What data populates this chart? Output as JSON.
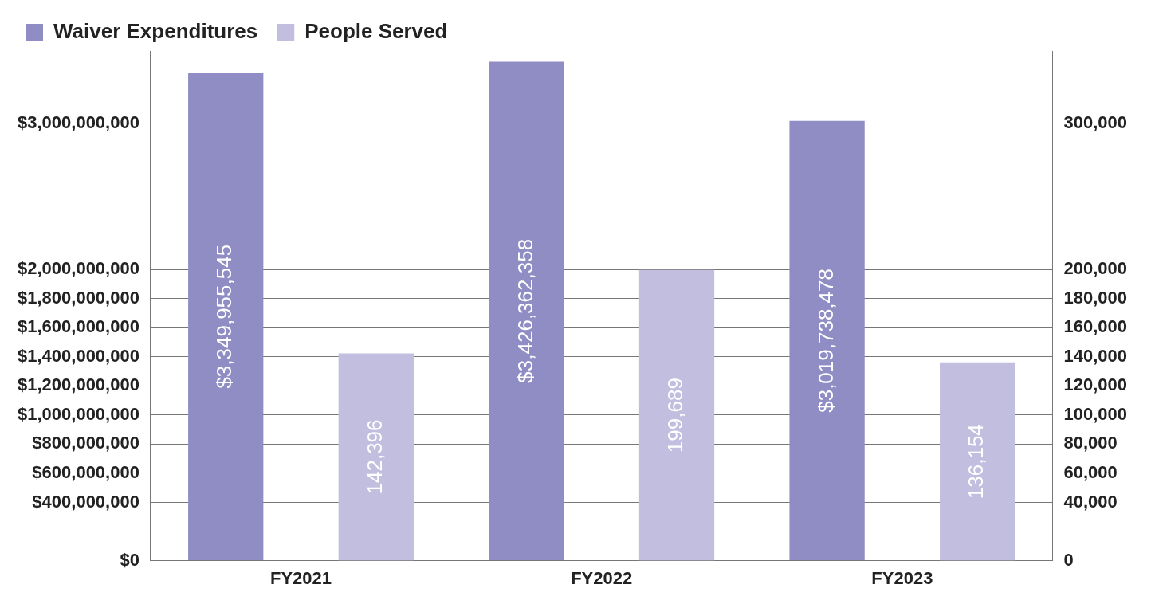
{
  "chart_data": {
    "type": "bar",
    "categories": [
      "FY2021",
      "FY2022",
      "FY2023"
    ],
    "series": [
      {
        "name": "Waiver Expenditures",
        "color": "#908cc4",
        "values": [
          3349955545,
          3426362358,
          3019738478
        ]
      },
      {
        "name": "People Served",
        "color": "#c2bedf",
        "values": [
          142396,
          199689,
          136154
        ],
        "axis": "y2"
      }
    ],
    "value_labels": [
      [
        "$3,349,955,545",
        "$3,426,362,358",
        "$3,019,738,478"
      ],
      [
        "142,396",
        "199,689",
        "136,154"
      ]
    ],
    "ylim": [
      0,
      3500000000
    ],
    "yticks": [
      {
        "value": 0,
        "label": "$0"
      },
      {
        "value": 400000000,
        "label": "$400,000,000"
      },
      {
        "value": 600000000,
        "label": "$600,000,000"
      },
      {
        "value": 800000000,
        "label": "$800,000,000"
      },
      {
        "value": 1000000000,
        "label": "$1,000,000,000"
      },
      {
        "value": 1200000000,
        "label": "$1,200,000,000"
      },
      {
        "value": 1400000000,
        "label": "$1,400,000,000"
      },
      {
        "value": 1600000000,
        "label": "$1,600,000,000"
      },
      {
        "value": 1800000000,
        "label": "$1,800,000,000"
      },
      {
        "value": 2000000000,
        "label": "$2,000,000,000"
      },
      {
        "value": 3000000000,
        "label": "$3,000,000,000"
      }
    ],
    "y2lim": [
      0,
      350000
    ],
    "y2ticks": [
      0,
      {
        "value": 40000,
        "label": "40,000"
      },
      {
        "value": 60000,
        "label": "60,000"
      },
      {
        "value": 80000,
        "label": "80,000"
      },
      {
        "value": 100000,
        "label": "100,000"
      },
      {
        "value": 120000,
        "label": "120,000"
      },
      {
        "value": 140000,
        "label": "140,000"
      },
      {
        "value": 160000,
        "label": "160,000"
      },
      {
        "value": 180000,
        "label": "180,000"
      },
      {
        "value": 200000,
        "label": "200,000"
      },
      {
        "value": 300000,
        "label": "300,000"
      }
    ],
    "grid": "y",
    "legend": "top"
  }
}
